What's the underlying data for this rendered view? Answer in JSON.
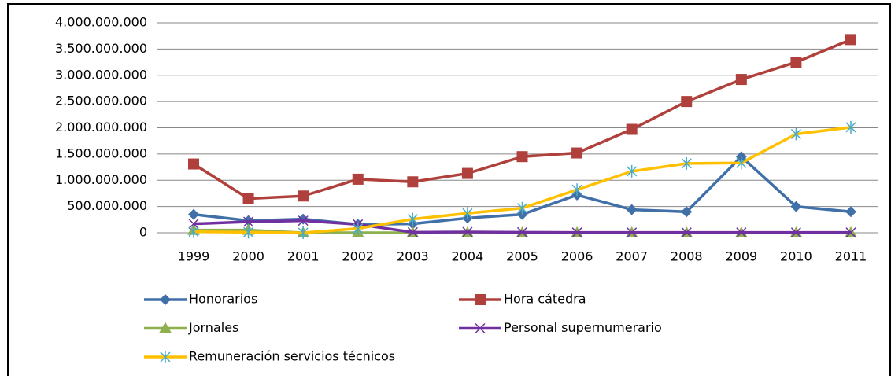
{
  "chart_data": {
    "type": "line",
    "categories": [
      "1999",
      "2000",
      "2001",
      "2002",
      "2003",
      "2004",
      "2005",
      "2006",
      "2007",
      "2008",
      "2009",
      "2010",
      "2011"
    ],
    "series": [
      {
        "name": "Honorarios",
        "color": "#4170a8",
        "marker": "diamond",
        "values": [
          350000000,
          230000000,
          260000000,
          160000000,
          170000000,
          280000000,
          350000000,
          720000000,
          440000000,
          400000000,
          1450000000,
          500000000,
          400000000
        ]
      },
      {
        "name": "Hora cátedra",
        "color": "#b0403c",
        "marker": "square",
        "values": [
          1310000000,
          650000000,
          700000000,
          1020000000,
          970000000,
          1130000000,
          1450000000,
          1520000000,
          1970000000,
          2500000000,
          2920000000,
          3250000000,
          3680000000
        ]
      },
      {
        "name": "Jornales",
        "color": "#8fb04f",
        "marker": "triangle",
        "values": [
          50000000,
          50000000,
          0,
          0,
          0,
          0,
          0,
          0,
          0,
          0,
          0,
          0,
          0
        ]
      },
      {
        "name": "Personal supernumerario",
        "color": "#7030a0",
        "marker": "x",
        "values": [
          170000000,
          210000000,
          230000000,
          160000000,
          10000000,
          15000000,
          10000000,
          5000000,
          5000000,
          5000000,
          5000000,
          5000000,
          5000000
        ]
      },
      {
        "name": "Remuneración servicios técnicos",
        "color": "#ffc000",
        "markerColor": "#4bacc6",
        "marker": "star",
        "values": [
          20000000,
          10000000,
          0,
          80000000,
          260000000,
          370000000,
          470000000,
          820000000,
          1170000000,
          1320000000,
          1330000000,
          1880000000,
          2010000000
        ]
      }
    ],
    "ylim": [
      0,
      4000000000
    ],
    "yticks": [
      0,
      {
        "value": 500000000,
        "label": "500.000.000"
      },
      {
        "value": 1000000000,
        "label": "1.000.000.000"
      },
      {
        "value": 1500000000,
        "label": "1.500.000.000"
      },
      {
        "value": 2000000000,
        "label": "2.000.000.000"
      },
      {
        "value": 2500000000,
        "label": "2.500.000.000"
      },
      {
        "value": 3000000000,
        "label": "3.000.000.000"
      },
      {
        "value": 3500000000,
        "label": "3.500.000.000"
      },
      {
        "value": 4000000000,
        "label": "4.000.000.000"
      }
    ],
    "grid": true,
    "legend": "bottom"
  }
}
